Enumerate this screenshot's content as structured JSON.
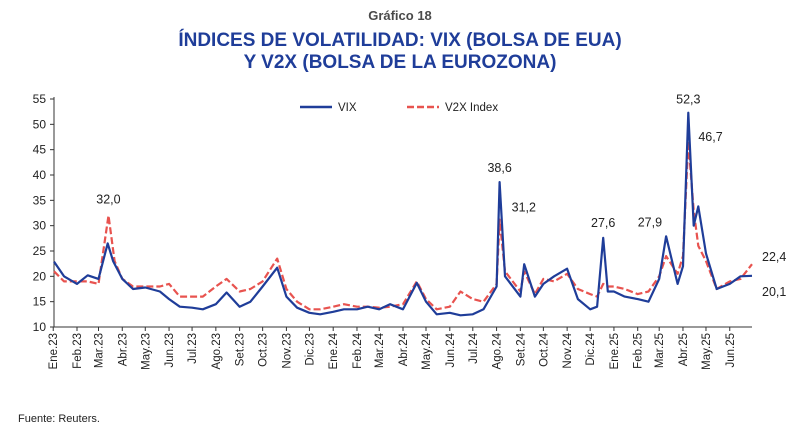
{
  "header": {
    "subtitle": "Gráfico 18",
    "title_line1": "ÍNDICES DE VOLATILIDAD: VIX (BOLSA DE EUA)",
    "title_line2": "Y V2X (BOLSA DE LA EUROZONA)"
  },
  "footer": {
    "source": "Fuente: Reuters."
  },
  "chart_data": {
    "type": "line",
    "title": "ÍNDICES DE VOLATILIDAD: VIX (BOLSA DE EUA) Y V2X (BOLSA DE LA EUROZONA)",
    "ylim": [
      10,
      55
    ],
    "yticks": [
      10,
      15,
      20,
      25,
      30,
      35,
      40,
      45,
      50,
      55
    ],
    "x_start": "2023-01-02",
    "x_end": "2025-06-30",
    "xtick_labels": [
      "Ene.23",
      "Feb.23",
      "Mar.23",
      "Abr.23",
      "May.23",
      "Jun.23",
      "Jul.23",
      "Ago.23",
      "Set.23",
      "Oct.23",
      "Nov.23",
      "Dic.23",
      "Ene.24",
      "Feb.24",
      "Mar.24",
      "Abr.24",
      "May.24",
      "Jun.24",
      "Jul.24",
      "Ago.24",
      "Set.24",
      "Oct.24",
      "Nov.24",
      "Dic.24",
      "Ene.25",
      "Feb.25",
      "Mar.25",
      "Abr.25",
      "May.25",
      "Jun.25"
    ],
    "xtick_dates": [
      "2023-01-01",
      "2023-02-01",
      "2023-03-01",
      "2023-04-01",
      "2023-05-01",
      "2023-06-01",
      "2023-07-01",
      "2023-08-01",
      "2023-09-01",
      "2023-10-01",
      "2023-11-01",
      "2023-12-01",
      "2024-01-01",
      "2024-02-01",
      "2024-03-01",
      "2024-04-01",
      "2024-05-01",
      "2024-06-01",
      "2024-07-01",
      "2024-08-01",
      "2024-09-01",
      "2024-10-01",
      "2024-11-01",
      "2024-12-01",
      "2025-01-01",
      "2025-02-01",
      "2025-03-01",
      "2025-04-01",
      "2025-05-01",
      "2025-06-01"
    ],
    "legend_position": "top-center",
    "grid": false,
    "series": [
      {
        "name": "VIX",
        "color": "#1f3d99",
        "style": "solid",
        "points": [
          [
            "2023-01-02",
            22.9
          ],
          [
            "2023-01-15",
            20.0
          ],
          [
            "2023-02-01",
            18.5
          ],
          [
            "2023-02-15",
            20.2
          ],
          [
            "2023-03-01",
            19.5
          ],
          [
            "2023-03-13",
            26.5
          ],
          [
            "2023-03-20",
            23.0
          ],
          [
            "2023-04-01",
            19.5
          ],
          [
            "2023-04-15",
            17.5
          ],
          [
            "2023-05-01",
            17.8
          ],
          [
            "2023-05-20",
            17.0
          ],
          [
            "2023-06-01",
            15.5
          ],
          [
            "2023-06-15",
            14.0
          ],
          [
            "2023-07-01",
            13.8
          ],
          [
            "2023-07-15",
            13.5
          ],
          [
            "2023-08-01",
            14.5
          ],
          [
            "2023-08-15",
            16.8
          ],
          [
            "2023-09-01",
            14.0
          ],
          [
            "2023-09-15",
            15.0
          ],
          [
            "2023-10-01",
            18.0
          ],
          [
            "2023-10-20",
            21.7
          ],
          [
            "2023-11-01",
            16.0
          ],
          [
            "2023-11-15",
            13.8
          ],
          [
            "2023-12-01",
            12.8
          ],
          [
            "2023-12-15",
            12.5
          ],
          [
            "2024-01-01",
            13.0
          ],
          [
            "2024-01-15",
            13.5
          ],
          [
            "2024-02-01",
            13.5
          ],
          [
            "2024-02-15",
            14.0
          ],
          [
            "2024-03-01",
            13.5
          ],
          [
            "2024-03-15",
            14.5
          ],
          [
            "2024-04-01",
            13.5
          ],
          [
            "2024-04-19",
            18.7
          ],
          [
            "2024-05-01",
            15.0
          ],
          [
            "2024-05-15",
            12.5
          ],
          [
            "2024-06-01",
            12.8
          ],
          [
            "2024-06-15",
            12.3
          ],
          [
            "2024-07-01",
            12.5
          ],
          [
            "2024-07-15",
            13.5
          ],
          [
            "2024-08-01",
            18.0
          ],
          [
            "2024-08-05",
            38.6
          ],
          [
            "2024-08-12",
            20.0
          ],
          [
            "2024-09-01",
            16.0
          ],
          [
            "2024-09-06",
            22.4
          ],
          [
            "2024-09-20",
            16.0
          ],
          [
            "2024-10-01",
            18.5
          ],
          [
            "2024-10-15",
            20.0
          ],
          [
            "2024-11-01",
            21.5
          ],
          [
            "2024-11-15",
            15.5
          ],
          [
            "2024-12-01",
            13.5
          ],
          [
            "2024-12-10",
            14.0
          ],
          [
            "2024-12-18",
            27.6
          ],
          [
            "2024-12-24",
            17.0
          ],
          [
            "2025-01-01",
            17.0
          ],
          [
            "2025-01-15",
            16.0
          ],
          [
            "2025-02-01",
            15.5
          ],
          [
            "2025-02-15",
            15.0
          ],
          [
            "2025-03-01",
            19.5
          ],
          [
            "2025-03-10",
            27.9
          ],
          [
            "2025-03-25",
            18.5
          ],
          [
            "2025-04-01",
            22.0
          ],
          [
            "2025-04-08",
            52.3
          ],
          [
            "2025-04-15",
            30.0
          ],
          [
            "2025-04-21",
            33.8
          ],
          [
            "2025-05-01",
            24.5
          ],
          [
            "2025-05-15",
            17.5
          ],
          [
            "2025-06-01",
            18.5
          ],
          [
            "2025-06-15",
            20.0
          ],
          [
            "2025-06-30",
            20.1
          ]
        ]
      },
      {
        "name": "V2X Index",
        "color": "#e8534f",
        "style": "dashed",
        "points": [
          [
            "2023-01-02",
            21.0
          ],
          [
            "2023-01-15",
            19.0
          ],
          [
            "2023-02-01",
            19.0
          ],
          [
            "2023-02-15",
            19.0
          ],
          [
            "2023-03-01",
            18.5
          ],
          [
            "2023-03-14",
            32.0
          ],
          [
            "2023-03-22",
            23.0
          ],
          [
            "2023-04-01",
            19.5
          ],
          [
            "2023-04-15",
            18.0
          ],
          [
            "2023-05-01",
            18.0
          ],
          [
            "2023-05-20",
            18.0
          ],
          [
            "2023-06-01",
            18.5
          ],
          [
            "2023-06-15",
            16.0
          ],
          [
            "2023-07-01",
            16.0
          ],
          [
            "2023-07-15",
            16.0
          ],
          [
            "2023-08-01",
            18.0
          ],
          [
            "2023-08-15",
            19.5
          ],
          [
            "2023-09-01",
            17.0
          ],
          [
            "2023-09-15",
            17.5
          ],
          [
            "2023-10-01",
            19.0
          ],
          [
            "2023-10-20",
            23.5
          ],
          [
            "2023-11-01",
            17.5
          ],
          [
            "2023-11-15",
            15.0
          ],
          [
            "2023-12-01",
            13.5
          ],
          [
            "2023-12-15",
            13.5
          ],
          [
            "2024-01-01",
            14.0
          ],
          [
            "2024-01-15",
            14.5
          ],
          [
            "2024-02-01",
            14.0
          ],
          [
            "2024-02-15",
            14.0
          ],
          [
            "2024-03-01",
            13.8
          ],
          [
            "2024-03-15",
            14.0
          ],
          [
            "2024-04-01",
            14.5
          ],
          [
            "2024-04-19",
            19.0
          ],
          [
            "2024-05-01",
            15.5
          ],
          [
            "2024-05-15",
            13.5
          ],
          [
            "2024-06-01",
            14.0
          ],
          [
            "2024-06-15",
            17.0
          ],
          [
            "2024-07-01",
            15.5
          ],
          [
            "2024-07-15",
            15.0
          ],
          [
            "2024-08-01",
            18.5
          ],
          [
            "2024-08-05",
            31.2
          ],
          [
            "2024-08-12",
            21.0
          ],
          [
            "2024-09-01",
            17.0
          ],
          [
            "2024-09-06",
            21.0
          ],
          [
            "2024-09-20",
            16.5
          ],
          [
            "2024-10-01",
            19.5
          ],
          [
            "2024-10-15",
            19.0
          ],
          [
            "2024-11-01",
            20.5
          ],
          [
            "2024-11-15",
            17.5
          ],
          [
            "2024-12-01",
            16.5
          ],
          [
            "2024-12-10",
            16.0
          ],
          [
            "2024-12-18",
            18.5
          ],
          [
            "2024-12-24",
            18.0
          ],
          [
            "2025-01-01",
            18.0
          ],
          [
            "2025-01-15",
            17.5
          ],
          [
            "2025-02-01",
            16.5
          ],
          [
            "2025-02-15",
            17.0
          ],
          [
            "2025-03-01",
            20.0
          ],
          [
            "2025-03-10",
            24.0
          ],
          [
            "2025-03-25",
            20.5
          ],
          [
            "2025-04-01",
            24.0
          ],
          [
            "2025-04-08",
            46.7
          ],
          [
            "2025-04-15",
            33.0
          ],
          [
            "2025-04-21",
            26.0
          ],
          [
            "2025-05-01",
            23.0
          ],
          [
            "2025-05-15",
            17.5
          ],
          [
            "2025-06-01",
            19.0
          ],
          [
            "2025-06-15",
            19.5
          ],
          [
            "2025-06-30",
            22.4
          ]
        ]
      }
    ],
    "annotations": [
      {
        "label": "32,0",
        "date": "2023-03-14",
        "value": 32.0
      },
      {
        "label": "38,6",
        "date": "2024-08-05",
        "value": 38.6
      },
      {
        "label": "31,2",
        "date": "2024-08-05",
        "value": 31.2
      },
      {
        "label": "27,6",
        "date": "2024-12-18",
        "value": 27.6
      },
      {
        "label": "27,9",
        "date": "2025-03-10",
        "value": 27.9
      },
      {
        "label": "52,3",
        "date": "2025-04-08",
        "value": 52.3
      },
      {
        "label": "46,7",
        "date": "2025-04-08",
        "value": 46.7
      },
      {
        "label": "22,4",
        "date": "2025-06-30",
        "value": 22.4
      },
      {
        "label": "20,1",
        "date": "2025-06-30",
        "value": 20.1
      }
    ]
  }
}
